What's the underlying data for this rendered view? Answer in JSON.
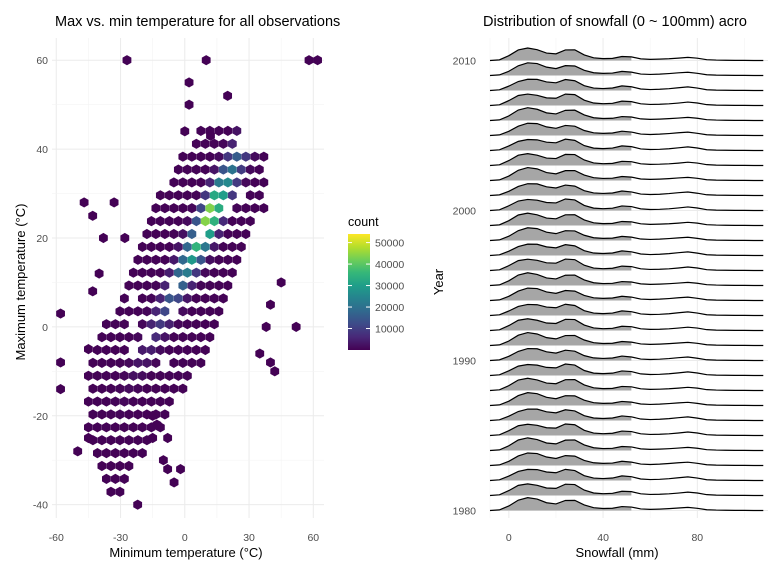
{
  "chart_data": [
    {
      "type": "heatmap",
      "subtype": "hexbin",
      "title": "Max vs. min temperature for all observations",
      "xlabel": "Minimum temperature (°C)",
      "ylabel": "Maximum temperature (°C)",
      "xlim": [
        -62,
        65
      ],
      "ylim": [
        -43,
        65
      ],
      "xticks": [
        -60,
        -30,
        0,
        30,
        60
      ],
      "yticks": [
        -40,
        -20,
        0,
        20,
        40,
        60
      ],
      "grid": true,
      "legend": {
        "title": "count",
        "placement": "right",
        "breaks": [
          10000,
          20000,
          30000,
          40000,
          50000
        ],
        "labels": [
          "10000",
          "20000",
          "30000",
          "40000",
          "50000"
        ],
        "range": [
          0,
          54000
        ],
        "colors": [
          "#440154",
          "#482878",
          "#3e4a89",
          "#31688e",
          "#26828e",
          "#1f9e89",
          "#35b779",
          "#6ece58",
          "#b5de2b",
          "#fde725"
        ]
      },
      "hex_width": 4.2,
      "hex_height": 2.9,
      "bins": [
        {
          "x": 30,
          "y": 49,
          "count": 0
        }
      ],
      "cloud": {
        "x_extent": [
          -45,
          37
        ],
        "y_extent": [
          -40,
          45
        ],
        "trend": {
          "slope": 1.0,
          "intercept": 13
        }
      },
      "outliers": [
        [
          -27,
          60
        ],
        [
          10,
          60
        ],
        [
          58,
          60
        ],
        [
          62,
          60
        ],
        [
          20,
          52
        ],
        [
          2,
          55
        ],
        [
          2,
          50
        ],
        [
          0,
          44
        ],
        [
          12,
          43
        ],
        [
          -47,
          28
        ],
        [
          -43,
          25
        ],
        [
          -33,
          28
        ],
        [
          -38,
          20
        ],
        [
          -28,
          20
        ],
        [
          -40,
          12
        ],
        [
          -43,
          8
        ],
        [
          -58,
          3
        ],
        [
          -58,
          -8
        ],
        [
          -58,
          -14
        ],
        [
          -45,
          -5
        ],
        [
          -50,
          -28
        ],
        [
          -45,
          -25
        ],
        [
          -15,
          -20
        ],
        [
          -13,
          -22
        ],
        [
          -15,
          -25
        ],
        [
          -8,
          -25
        ],
        [
          -10,
          -30
        ],
        [
          -8,
          -32
        ],
        [
          -2,
          -32
        ],
        [
          -5,
          -35
        ],
        [
          -22,
          -40
        ],
        [
          52,
          0
        ],
        [
          35,
          -6
        ],
        [
          40,
          -8
        ],
        [
          42,
          -10
        ],
        [
          40,
          5
        ],
        [
          45,
          10
        ],
        [
          38,
          0
        ]
      ],
      "peak": {
        "x": 12,
        "y": 25,
        "count": 54000
      }
    },
    {
      "type": "area",
      "subtype": "ridgeline",
      "title": "Distribution of snowfall (0 ~ 100mm) acro",
      "xlabel": "Snowfall (mm)",
      "ylabel": "Year",
      "xlim": [
        -8,
        110
      ],
      "xticks": [
        0,
        40,
        80
      ],
      "ylim": [
        1979.5,
        2011.5
      ],
      "yticks": [
        1980,
        1990,
        2000,
        2010
      ],
      "grid": true,
      "fill": "#a6a6a6",
      "years": [
        1980,
        1981,
        1982,
        1983,
        1984,
        1985,
        1986,
        1987,
        1988,
        1989,
        1990,
        1991,
        1992,
        1993,
        1994,
        1995,
        1996,
        1997,
        1998,
        1999,
        2000,
        2001,
        2002,
        2003,
        2004,
        2005,
        2006,
        2007,
        2008,
        2009,
        2010
      ],
      "density_x": [
        -8,
        -4,
        0,
        4,
        8,
        12,
        16,
        20,
        24,
        28,
        32,
        36,
        40,
        44,
        48,
        52,
        56,
        60,
        64,
        68,
        72,
        76,
        80,
        84,
        88,
        92,
        96,
        100,
        104,
        108
      ],
      "density_shape": [
        0.0,
        0.05,
        0.35,
        0.75,
        0.92,
        0.85,
        0.62,
        0.55,
        0.82,
        0.78,
        0.4,
        0.2,
        0.15,
        0.18,
        0.33,
        0.28,
        0.12,
        0.08,
        0.1,
        0.14,
        0.2,
        0.26,
        0.18,
        0.06,
        0.03,
        0.02,
        0.01,
        0.01,
        0.0,
        0.0
      ],
      "fill_end_x": 55
    }
  ]
}
